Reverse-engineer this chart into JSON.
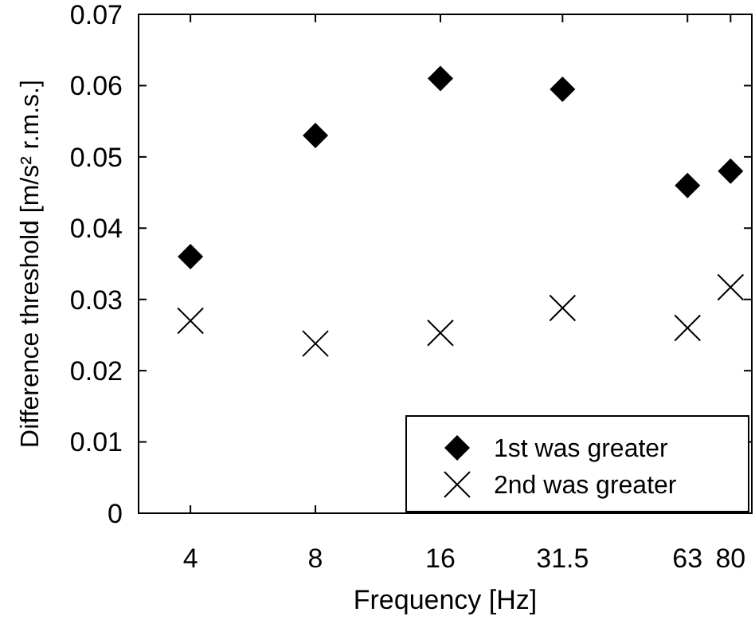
{
  "chart_data": {
    "type": "scatter",
    "xlabel": "Frequency [Hz]",
    "ylabel": "Difference threshold [m/s² r.m.s.]",
    "log": "x",
    "x": [
      4,
      8,
      16,
      31.5,
      63,
      80
    ],
    "series": [
      {
        "name": "1st was greater",
        "color": "#000000",
        "marker": "diamond",
        "values": [
          0.036,
          0.053,
          0.061,
          0.0595,
          0.046,
          0.048
        ]
      },
      {
        "name": "2nd was greater",
        "color": "#000000",
        "marker": "cross",
        "values": [
          0.027,
          0.0238,
          0.0253,
          0.0288,
          0.026,
          0.0317
        ]
      }
    ],
    "xlim": [
      3,
      90
    ],
    "xticks": [
      4,
      8,
      16,
      31.5,
      63,
      80
    ],
    "ylim": [
      0,
      0.07
    ],
    "yticks": [
      0,
      0.01,
      0.02,
      0.03,
      0.04,
      0.05,
      0.06,
      0.07
    ],
    "grid": false,
    "legend": "bottom right"
  }
}
